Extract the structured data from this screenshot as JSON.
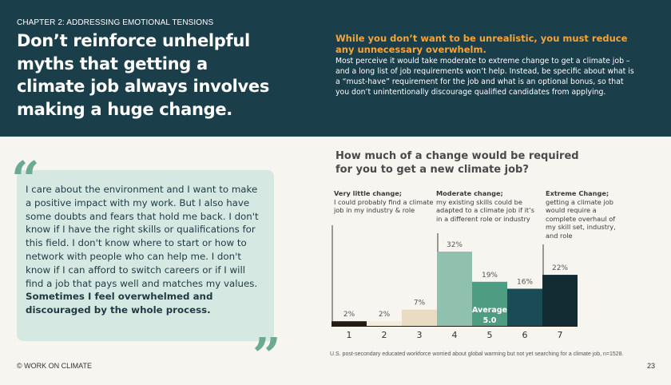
{
  "header": {
    "chapter": "CHAPTER 2: ADDRESSING EMOTIONAL TENSIONS",
    "headline": "Don’t reinforce unhelpful myths that getting a climate job always involves making a huge change.",
    "subheadline": "While you don’t want to be unrealistic, you must reduce any unnecessary overwhelm.",
    "body": "Most perceive it would take moderate to extreme change to get a climate job – and a long list of job requirements won’t help. Instead, be specific about what is a “must-have” requirement for the job and what is an optional bonus, so that you don’t unintentionally discourage qualified candidates from applying."
  },
  "quote": {
    "text": "I care about the environment and I want to make a positive impact with my work. But I also have some doubts and fears that hold me back. I don't know if I have the right skills or qualifications for this field. I don't know where to start or how to network with people who can help me. I don't know if I can afford to switch careers or if I will find a job that pays well and matches my values.",
    "emphasis": "Sometimes I feel overwhelmed and discouraged by the whole process.",
    "open_mark": "“",
    "close_mark": "”"
  },
  "chart_data": {
    "type": "bar",
    "title": "How much of a change would be required for you to get a new climate job?",
    "categories": [
      "1",
      "2",
      "3",
      "4",
      "5",
      "6",
      "7"
    ],
    "values": [
      2,
      2,
      7,
      32,
      19,
      16,
      22
    ],
    "value_labels": [
      "2%",
      "2%",
      "7%",
      "32%",
      "19%",
      "16%",
      "22%"
    ],
    "colors": [
      "#241b12",
      "#f4ecde",
      "#e8dcc3",
      "#8fc1ae",
      "#4e9d83",
      "#1b4c55",
      "#132b32"
    ],
    "average": {
      "label": "Average",
      "value": "5.0",
      "category": "5"
    },
    "annotations": [
      {
        "title": "Very little change;",
        "text": "I could probably find a climate job in my industry & role",
        "category": "1"
      },
      {
        "title": "Moderate change;",
        "text": "my existing skills could be adapted to a climate job if it’s in a different role or industry",
        "category": "4"
      },
      {
        "title": "Extreme Change;",
        "text": "getting a climate job would require a complete overhaul of my skill set, industry, and role",
        "category": "7"
      }
    ],
    "ylim": [
      0,
      32
    ],
    "grid": false,
    "legend": "none"
  },
  "footnote": "U.S. post-secondary educated workforce worried about global warming but not yet searching for a climate job, n=1528.",
  "footer": {
    "copyright": "© WORK ON CLIMATE",
    "page_number": "23"
  }
}
